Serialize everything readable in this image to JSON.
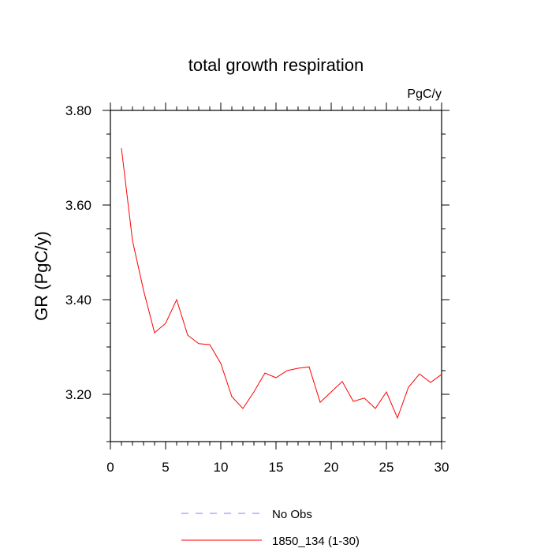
{
  "chart_data": {
    "type": "line",
    "title": "total growth respiration",
    "units_label": "PgC/y",
    "ylabel": "GR  (PgC/y)",
    "xlabel": "",
    "xlim": [
      0,
      30
    ],
    "ylim": [
      3.1,
      3.8
    ],
    "x_ticks": [
      "0",
      "5",
      "10",
      "15",
      "20",
      "25",
      "30"
    ],
    "y_ticks": [
      "3.20",
      "3.40",
      "3.60",
      "3.80"
    ],
    "grid": false,
    "legend_position": "bottom",
    "legend": [
      {
        "name": "No Obs",
        "color": "#8080ff",
        "style": "dashed"
      },
      {
        "name": "1850_134 (1-30)",
        "color": "#ff0000",
        "style": "solid"
      }
    ],
    "series": [
      {
        "name": "1850_134 (1-30)",
        "color": "#ff0000",
        "x": [
          1,
          2,
          3,
          4,
          5,
          6,
          7,
          8,
          9,
          10,
          11,
          12,
          13,
          14,
          15,
          16,
          17,
          18,
          19,
          20,
          21,
          22,
          23,
          24,
          25,
          26,
          27,
          28,
          29,
          30
        ],
        "values": [
          3.72,
          3.525,
          3.42,
          3.33,
          3.35,
          3.4,
          3.325,
          3.307,
          3.305,
          3.265,
          3.195,
          3.17,
          3.205,
          3.245,
          3.235,
          3.25,
          3.255,
          3.258,
          3.183,
          3.205,
          3.227,
          3.185,
          3.192,
          3.17,
          3.205,
          3.15,
          3.215,
          3.243,
          3.225,
          3.242
        ]
      }
    ]
  }
}
